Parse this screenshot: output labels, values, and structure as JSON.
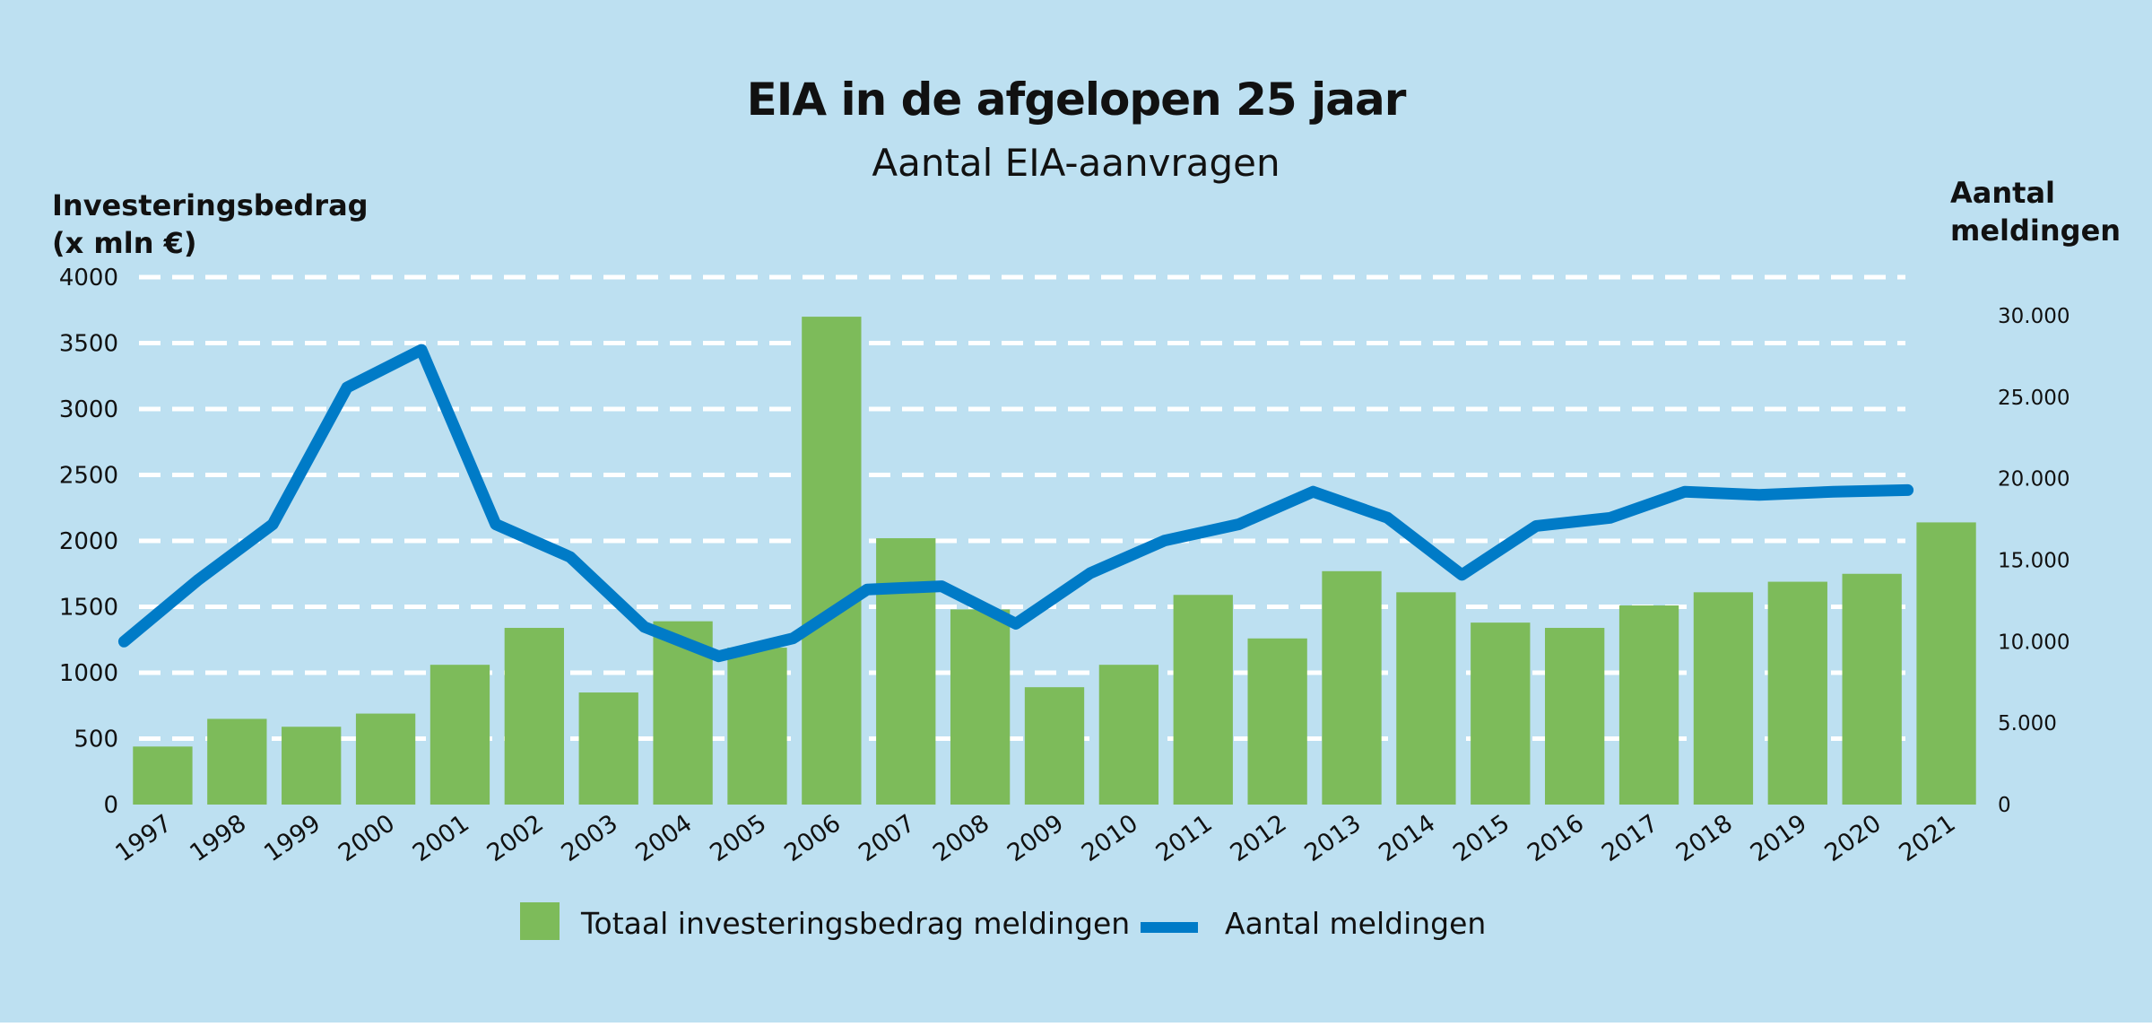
{
  "chart_data": {
    "type": "bar",
    "title": "EIA in de afgelopen 25 jaar",
    "subtitle": "Aantal EIA-aanvragen",
    "ylabel_left": [
      "Investeringsbedrag",
      "(x mln €)"
    ],
    "ylabel_right": [
      "Aantal",
      "meldingen"
    ],
    "ylim_left": [
      0,
      4000
    ],
    "ylim_right": [
      0,
      32000
    ],
    "yticks_left": [
      "0",
      "500",
      "1000",
      "1500",
      "2000",
      "2500",
      "3000",
      "3500",
      "4000"
    ],
    "yticks_right": [
      {
        "label": "0",
        "value": 0
      },
      {
        "label": "5.000",
        "value": 5000
      },
      {
        "label": "10.000",
        "value": 10000
      },
      {
        "label": "15.000",
        "value": 15000
      },
      {
        "label": "20.000",
        "value": 20000
      },
      {
        "label": "25.000",
        "value": 25000
      },
      {
        "label": "30.000",
        "value": 30000
      }
    ],
    "grid": true,
    "legend_position": "bottom",
    "categories": [
      "1997",
      "1998",
      "1999",
      "2000",
      "2001",
      "2002",
      "2003",
      "2004",
      "2005",
      "2006",
      "2007",
      "2008",
      "2009",
      "2010",
      "2011",
      "2012",
      "2013",
      "2014",
      "2015",
      "2016",
      "2017",
      "2018",
      "2019",
      "2020",
      "2021"
    ],
    "series": [
      {
        "name": "Totaal investeringsbedrag meldingen",
        "type": "bar",
        "axis": "left",
        "color": "#7dbb5a",
        "values": [
          440,
          650,
          590,
          690,
          1060,
          1340,
          850,
          1390,
          1190,
          3700,
          2020,
          1480,
          890,
          1060,
          1590,
          1260,
          1770,
          1610,
          1380,
          1340,
          1510,
          1610,
          1690,
          1750,
          2140
        ]
      },
      {
        "name": "Aantal meldingen",
        "type": "line",
        "axis": "right",
        "color": "#007bc7",
        "values": [
          10000,
          13800,
          17200,
          25600,
          27900,
          17200,
          15200,
          10900,
          9100,
          10200,
          13200,
          13400,
          11100,
          14200,
          16200,
          17200,
          19200,
          17600,
          14100,
          17100,
          17600,
          19200,
          19000,
          19200,
          19300
        ]
      }
    ]
  }
}
